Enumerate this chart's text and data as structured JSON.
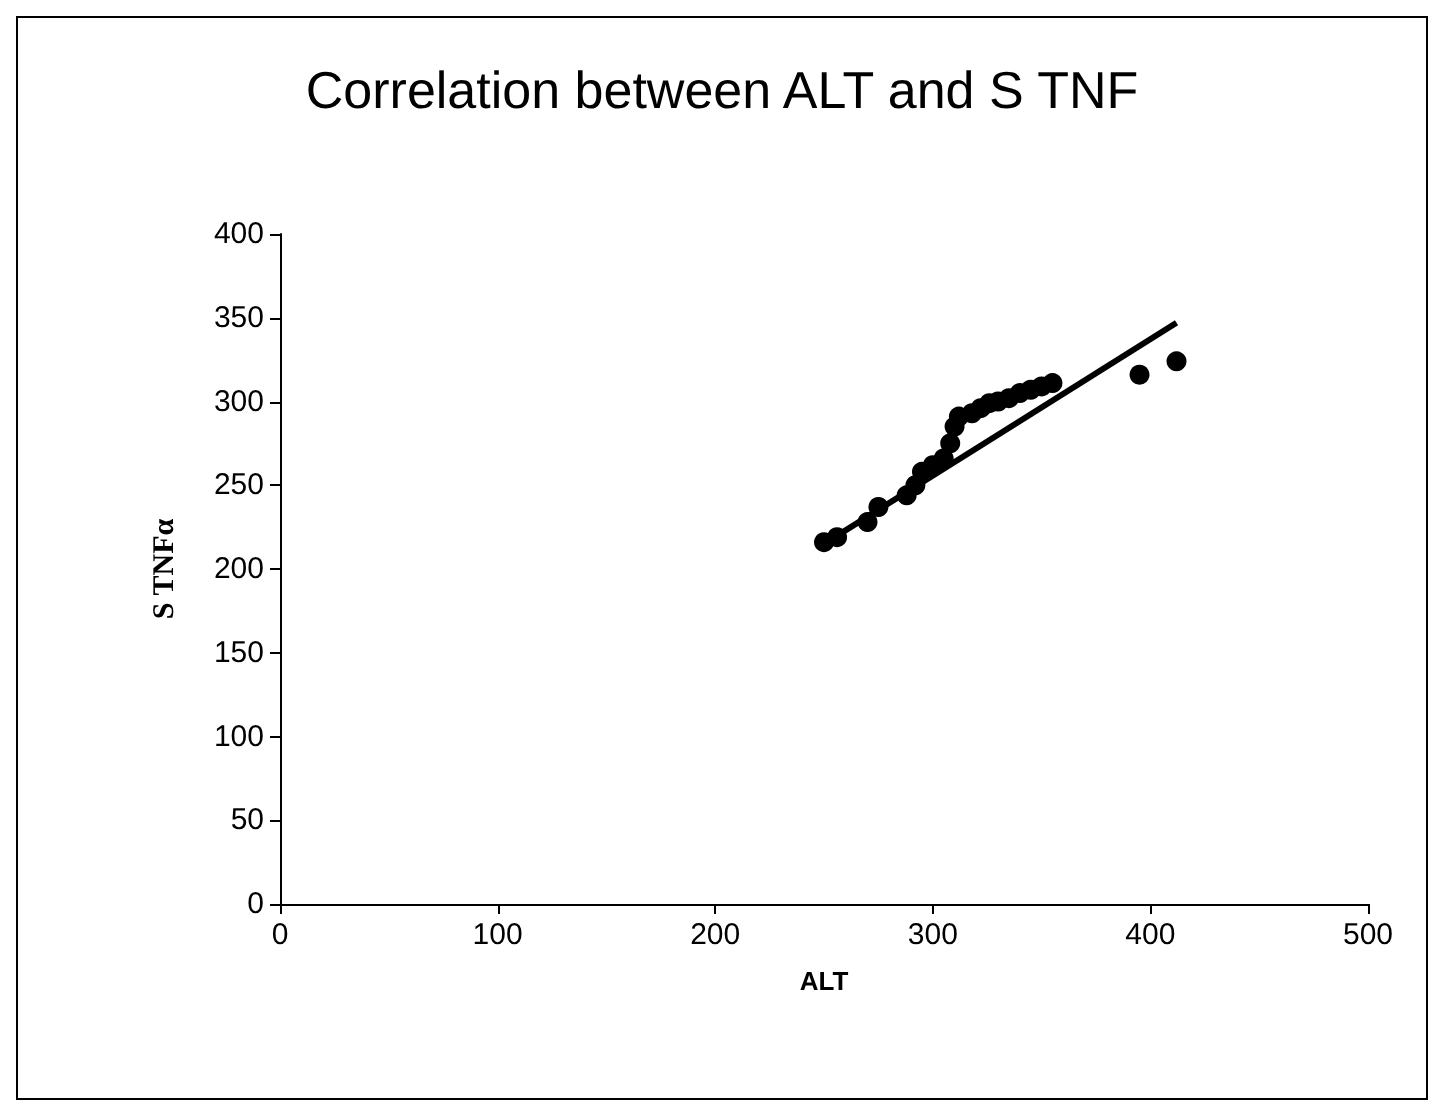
{
  "chart_data": {
    "type": "scatter",
    "title": "Correlation between ALT and S TNF",
    "xlabel": "ALT",
    "ylabel": "S TNFα",
    "xlim": [
      0,
      500
    ],
    "xticks": [
      0,
      100,
      200,
      300,
      400,
      500
    ],
    "ylim": [
      0,
      400
    ],
    "yticks": [
      0,
      50,
      100,
      150,
      200,
      250,
      300,
      350,
      400
    ],
    "grid": false,
    "series": [
      {
        "marker": "circle",
        "color": "#000000",
        "x": [
          250,
          256,
          270,
          275,
          288,
          292,
          295,
          300,
          305,
          308,
          310,
          312,
          318,
          322,
          326,
          330,
          335,
          340,
          345,
          350,
          355,
          395,
          412
        ],
        "values": [
          216,
          219,
          228,
          237,
          244,
          250,
          258,
          262,
          266,
          275,
          285,
          291,
          293,
          296,
          299,
          300,
          302,
          305,
          307,
          309,
          311,
          316,
          324
        ]
      },
      {
        "type": "line",
        "marker": "none",
        "color": "#000000",
        "x": [
          250,
          412
        ],
        "values": [
          215,
          347
        ]
      }
    ]
  }
}
